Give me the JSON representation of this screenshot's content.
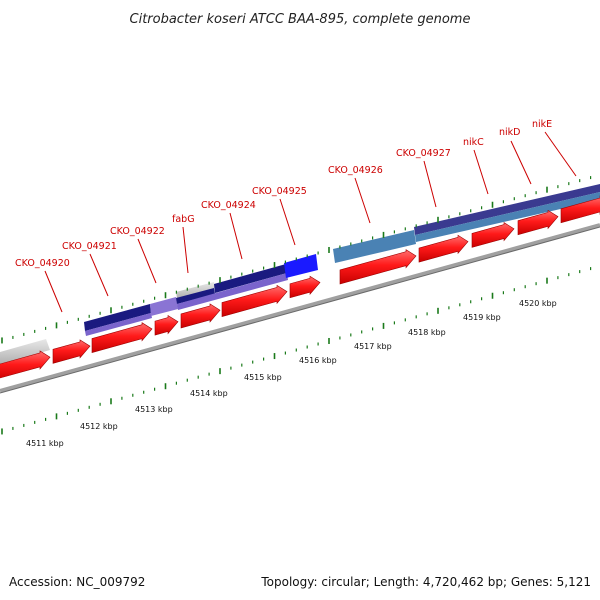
{
  "title": "Citrobacter koseri ATCC BAA-895, complete genome",
  "footer": {
    "accession": "Accession: NC_009792",
    "summary": "Topology: circular; Length: 4,720,462 bp; Genes: 5,121"
  },
  "gene_labels": [
    "CKO_04920",
    "CKO_04921",
    "CKO_04922",
    "fabG",
    "CKO_04924",
    "CKO_04925",
    "CKO_04926",
    "CKO_04927",
    "nikC",
    "nikD",
    "nikE"
  ],
  "kbp_ticks": [
    "4511 kbp",
    "4512 kbp",
    "4513 kbp",
    "4514 kbp",
    "4515 kbp",
    "4516 kbp",
    "4517 kbp",
    "4518 kbp",
    "4519 kbp",
    "4520 kbp"
  ],
  "colors": {
    "gene_arrow": "#ff1a1a",
    "gene_label": "#cc0000",
    "tick_green": "#1a7a1a",
    "backbone": "#888888",
    "cog_dark_navy": "#1a1a80",
    "cog_purple": "#7a64cc",
    "cog_blue": "#1a1aff",
    "cog_steel": "#4a82b4",
    "cog_grey": "#c8c8c8"
  }
}
